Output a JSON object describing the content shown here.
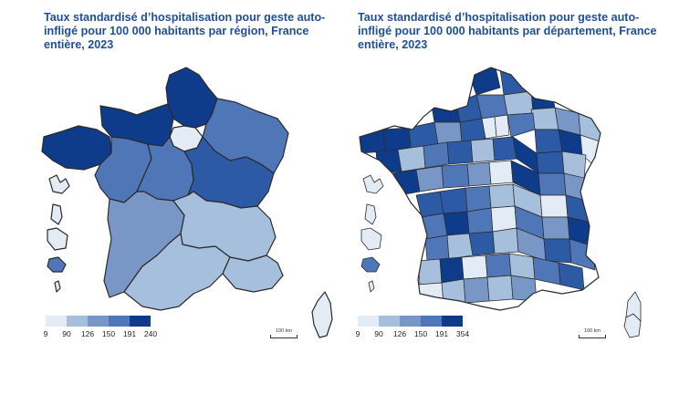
{
  "colors": {
    "c1": "#e3ebf4",
    "c2": "#a6bfdc",
    "c3": "#7897c7",
    "c4": "#4f76b7",
    "c5": "#2d5aa5",
    "c6": "#0f3c8a",
    "stroke": "#2a2a2a"
  },
  "left": {
    "title": "Taux standardisé d’hospitalisation pour geste auto-infligé pour 100 000 habitants par région, France entière, 2023",
    "legend_ticks": [
      "9",
      "90",
      "126",
      "150",
      "191",
      "240"
    ],
    "scale_label": "100 km"
  },
  "right": {
    "title": "Taux standardisé d’hospitalisation pour geste auto-infligé pour 100 000 habitants par département, France entière, 2023",
    "legend_ticks": [
      "9",
      "90",
      "126",
      "150",
      "191",
      "354"
    ],
    "scale_label": "100 km"
  }
}
